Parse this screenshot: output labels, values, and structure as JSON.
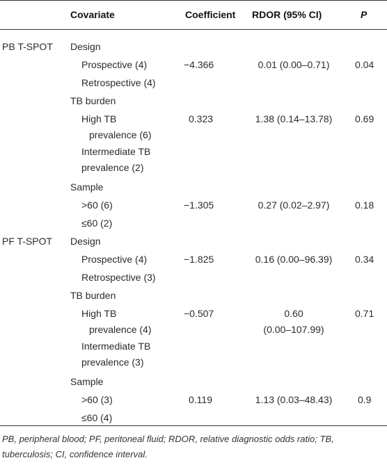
{
  "table": {
    "headers": {
      "covariate": "Covariate",
      "coefficient": "Coefficient",
      "rdor": "RDOR (95% CI)",
      "p": "P"
    },
    "groups": [
      {
        "label": "PB T-SPOT",
        "covariates": [
          {
            "name": "Design",
            "levels": [
              "Prospective (4)",
              "Retrospective (4)"
            ],
            "coefficient": "−4.366",
            "rdor": [
              "0.01 (0.00–0.71)"
            ],
            "p": "0.04"
          },
          {
            "name": "TB burden",
            "levels": [
              "High TB",
              "prevalence (6)",
              "Intermediate TB",
              "prevalence (2)"
            ],
            "coefficient": "0.323",
            "rdor": [
              "1.38 (0.14–13.78)"
            ],
            "p": "0.69"
          },
          {
            "name": "Sample",
            "levels": [
              ">60 (6)",
              "≤60 (2)"
            ],
            "coefficient": "−1.305",
            "rdor": [
              "0.27 (0.02–2.97)"
            ],
            "p": "0.18"
          }
        ]
      },
      {
        "label": "PF T-SPOT",
        "covariates": [
          {
            "name": "Design",
            "levels": [
              "Prospective (4)",
              "Retrospective (3)"
            ],
            "coefficient": "−1.825",
            "rdor": [
              "0.16 (0.00–96.39)"
            ],
            "p": "0.34"
          },
          {
            "name": "TB burden",
            "levels": [
              "High TB",
              "prevalence (4)",
              "Intermediate TB",
              "prevalence (3)"
            ],
            "coefficient": "−0.507",
            "rdor": [
              "0.60",
              "(0.00–107.99)"
            ],
            "p": "0.71"
          },
          {
            "name": "Sample",
            "levels": [
              ">60 (3)",
              "≤60 (4)"
            ],
            "coefficient": "0.119",
            "rdor": [
              "1.13 (0.03–48.43)"
            ],
            "p": "0.9"
          }
        ]
      }
    ]
  },
  "footnote": "PB, peripheral blood; PF, peritoneal fluid; RDOR, relative diagnostic odds ratio; TB, tuberculosis; CI, confidence interval."
}
